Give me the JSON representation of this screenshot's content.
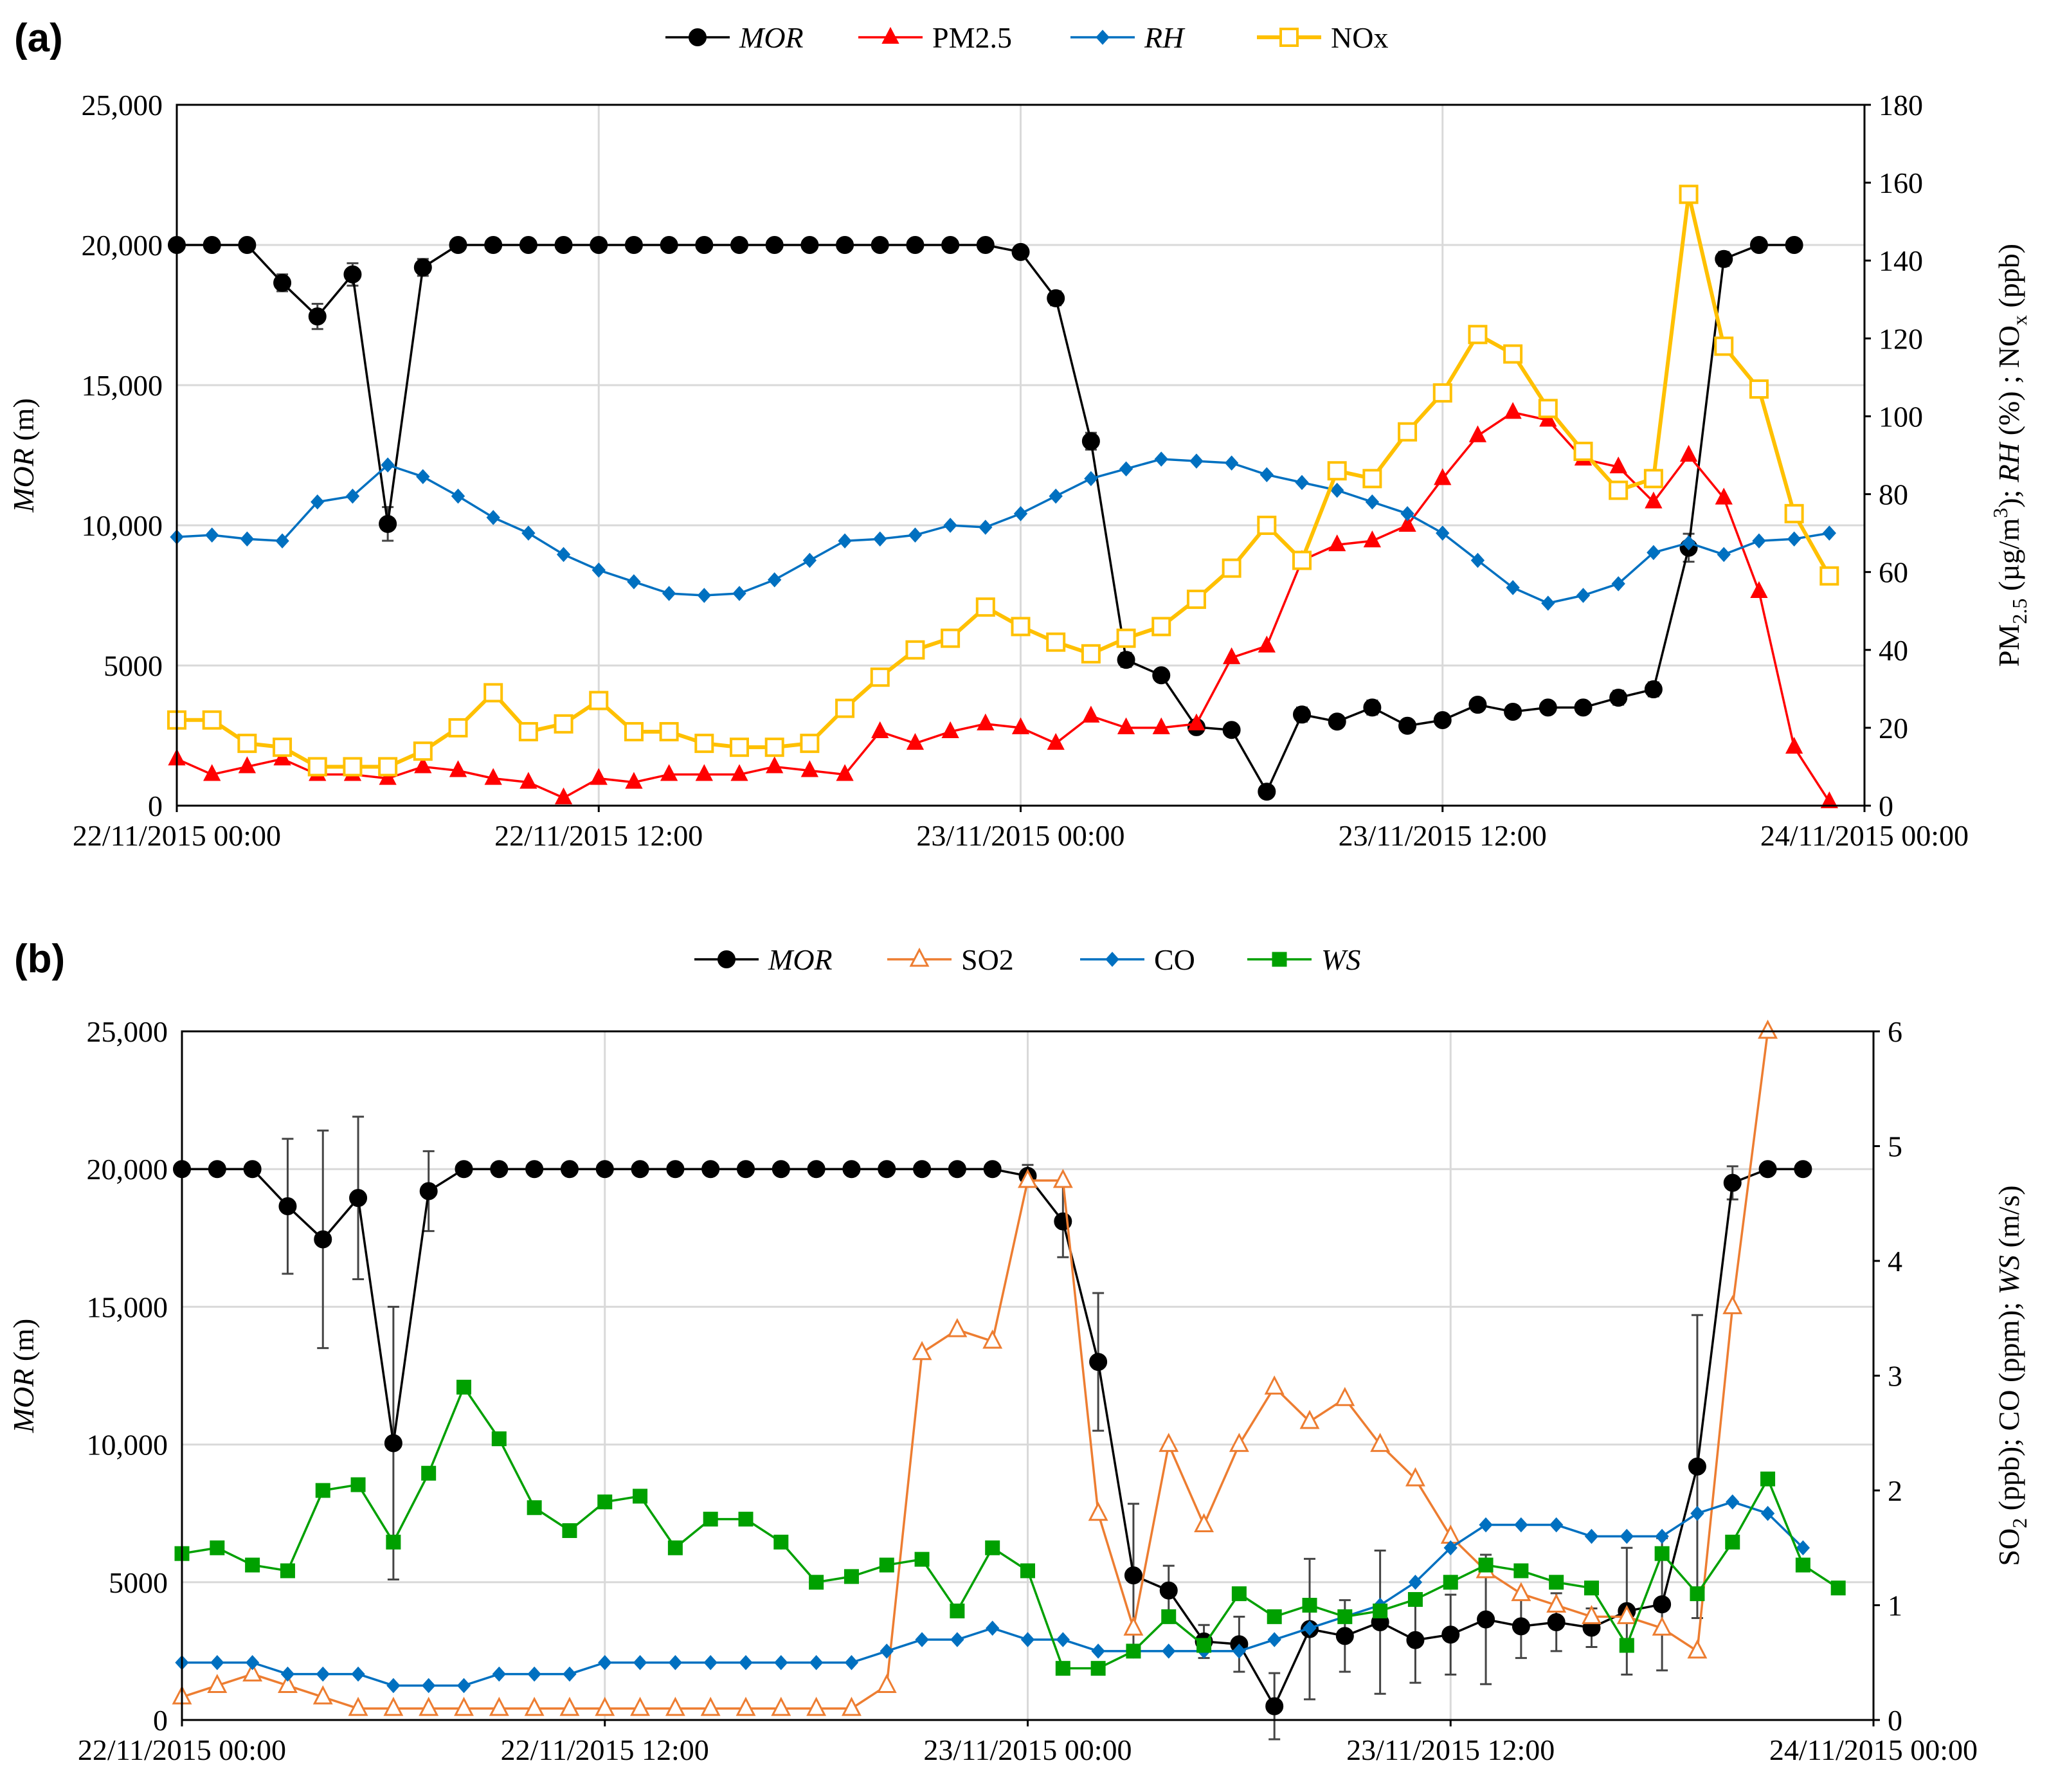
{
  "chart_data": [
    {
      "type": "line",
      "panel_label": "(a)",
      "x_labels": [
        "22/11/2015 00:00",
        "22/11/2015 12:00",
        "23/11/2015 00:00",
        "23/11/2015 12:00",
        "24/11/2015 00:00"
      ],
      "x_range_hours": [
        0,
        48
      ],
      "y_left": {
        "label_italic": "MOR",
        "label_rest": " (m)",
        "range": [
          0,
          25000
        ],
        "ticks": [
          "0",
          "5000",
          "10,000",
          "15,000",
          "20,000",
          "25,000"
        ]
      },
      "y_right": {
        "label": "PM2.5 (µg/m3); RH (%) ; NOx (ppb)",
        "range": [
          0,
          180
        ],
        "ticks": [
          "0",
          "20",
          "40",
          "60",
          "80",
          "100",
          "120",
          "140",
          "160",
          "180"
        ]
      },
      "series": [
        {
          "name": "MOR",
          "italic": true,
          "axis": "left",
          "color": "#000000",
          "marker": "circle-filled",
          "values": [
            20000,
            20000,
            20000,
            18650,
            17450,
            18950,
            10050,
            19200,
            20000,
            20000,
            20000,
            20000,
            20000,
            20000,
            20000,
            20000,
            20000,
            20000,
            20000,
            20000,
            20000,
            20000,
            20000,
            20000,
            19750,
            18100,
            13000,
            5200,
            4650,
            2800,
            2700,
            500,
            3250,
            3000,
            3500,
            2850,
            3050,
            3600,
            3350,
            3500,
            3500,
            3850,
            4150,
            9200,
            19500,
            20000,
            20000
          ],
          "errors": [
            0,
            0,
            0,
            300,
            450,
            400,
            600,
            300,
            0,
            0,
            0,
            0,
            0,
            0,
            0,
            0,
            0,
            0,
            0,
            0,
            0,
            0,
            0,
            0,
            150,
            250,
            300,
            250,
            200,
            200,
            150,
            150,
            250,
            200,
            250,
            200,
            200,
            200,
            200,
            200,
            200,
            250,
            250,
            500,
            250,
            0,
            0
          ]
        },
        {
          "name": "PM2.5",
          "italic": false,
          "axis": "right",
          "color": "#ff0000",
          "marker": "triangle-filled",
          "values": [
            12,
            8,
            10,
            12,
            8,
            8,
            7,
            10,
            9,
            7,
            6,
            2,
            7,
            6,
            8,
            8,
            8,
            10,
            9,
            8,
            19,
            16,
            19,
            21,
            20,
            16,
            23,
            20,
            20,
            21,
            38,
            41,
            63,
            67,
            68,
            72,
            84,
            95,
            101,
            99,
            89,
            87,
            78,
            90,
            79,
            55,
            15,
            1
          ]
        },
        {
          "name": "RH",
          "italic": true,
          "axis": "right",
          "color": "#0070c0",
          "marker": "diamond-filled",
          "values": [
            69,
            69.5,
            68.5,
            68,
            78,
            79.5,
            87.5,
            84.5,
            79.5,
            74,
            70,
            64.5,
            60.5,
            57.5,
            54.5,
            54,
            54.5,
            58,
            63,
            68,
            68.5,
            69.5,
            72,
            71.5,
            75,
            79.5,
            84,
            86.5,
            89,
            88.5,
            88,
            85,
            83,
            81,
            78,
            75,
            70,
            63,
            56,
            52,
            54,
            57,
            65,
            67.5,
            64.5,
            68,
            68.5,
            70
          ]
        },
        {
          "name": "NOx",
          "italic": false,
          "axis": "right",
          "color": "#ffc000",
          "marker": "square-open",
          "values": [
            22,
            22,
            16,
            15,
            10,
            10,
            10,
            14,
            20,
            29,
            19,
            21,
            27,
            19,
            19,
            16,
            15,
            15,
            16,
            25,
            33,
            40,
            43,
            51,
            46,
            42,
            39,
            43,
            46,
            53,
            61,
            72,
            63,
            86,
            84,
            96,
            106,
            121,
            116,
            102,
            91,
            81,
            84,
            157,
            118,
            107,
            75,
            59
          ]
        }
      ]
    },
    {
      "type": "line",
      "panel_label": "(b)",
      "x_labels": [
        "22/11/2015 00:00",
        "22/11/2015 12:00",
        "23/11/2015 00:00",
        "23/11/2015 12:00",
        "24/11/2015 00:00"
      ],
      "x_range_hours": [
        0,
        48
      ],
      "y_left": {
        "label_italic": "MOR",
        "label_rest": " (m)",
        "range": [
          0,
          25000
        ],
        "ticks": [
          "0",
          "5000",
          "10,000",
          "15,000",
          "20,000",
          "25,000"
        ]
      },
      "y_right": {
        "label": "SO2 (ppb); CO (ppm); WS (m/s)",
        "range": [
          0,
          6
        ],
        "ticks": [
          "0",
          "1",
          "2",
          "3",
          "4",
          "5",
          "6"
        ]
      },
      "series": [
        {
          "name": "MOR",
          "italic": true,
          "axis": "left",
          "color": "#000000",
          "marker": "circle-filled",
          "values": [
            20000,
            20000,
            20000,
            18650,
            17450,
            18950,
            10050,
            19200,
            20000,
            20000,
            20000,
            20000,
            20000,
            20000,
            20000,
            20000,
            20000,
            20000,
            20000,
            20000,
            20000,
            20000,
            20000,
            20000,
            19750,
            18100,
            13000,
            5250,
            4700,
            2850,
            2750,
            500,
            3300,
            3050,
            3550,
            2900,
            3100,
            3650,
            3400,
            3550,
            3350,
            3950,
            4200,
            9200,
            19500,
            20000,
            20000
          ],
          "errors": [
            0,
            0,
            0,
            2450,
            3950,
            2950,
            4950,
            1450,
            0,
            0,
            0,
            0,
            0,
            0,
            0,
            0,
            0,
            0,
            0,
            0,
            0,
            0,
            0,
            0,
            400,
            1300,
            2500,
            2600,
            900,
            600,
            1000,
            1200,
            2550,
            1300,
            2600,
            1550,
            1450,
            2350,
            1150,
            1050,
            700,
            2300,
            2400,
            5500,
            600,
            0,
            0
          ]
        },
        {
          "name": "SO2",
          "italic": false,
          "axis": "right",
          "color": "#ed7d31",
          "marker": "triangle-open",
          "values": [
            0.2,
            0.3,
            0.4,
            0.3,
            0.2,
            0.1,
            0.1,
            0.1,
            0.1,
            0.1,
            0.1,
            0.1,
            0.1,
            0.1,
            0.1,
            0.1,
            0.1,
            0.1,
            0.1,
            0.1,
            0.3,
            3.2,
            3.4,
            3.3,
            4.7,
            4.7,
            1.8,
            0.8,
            2.4,
            1.7,
            2.4,
            2.9,
            2.6,
            2.8,
            2.4,
            2.1,
            1.6,
            1.3,
            1.1,
            1.0,
            0.9,
            0.9,
            0.8,
            0.6,
            3.6,
            6.0
          ]
        },
        {
          "name": "CO",
          "italic": false,
          "axis": "right",
          "color": "#0070c0",
          "marker": "diamond-filled",
          "values": [
            0.5,
            0.5,
            0.5,
            0.4,
            0.4,
            0.4,
            0.3,
            0.3,
            0.3,
            0.4,
            0.4,
            0.4,
            0.5,
            0.5,
            0.5,
            0.5,
            0.5,
            0.5,
            0.5,
            0.5,
            0.6,
            0.7,
            0.7,
            0.8,
            0.7,
            0.7,
            0.6,
            0.6,
            0.6,
            0.6,
            0.6,
            0.7,
            0.8,
            0.9,
            1.0,
            1.2,
            1.5,
            1.7,
            1.7,
            1.7,
            1.6,
            1.6,
            1.6,
            1.8,
            1.9,
            1.8,
            1.5
          ]
        },
        {
          "name": "WS",
          "italic": true,
          "axis": "right",
          "color": "#00a000",
          "marker": "square-filled",
          "values": [
            1.45,
            1.5,
            1.35,
            1.3,
            2.0,
            2.05,
            1.55,
            2.15,
            2.9,
            2.45,
            1.85,
            1.65,
            1.9,
            1.95,
            1.5,
            1.75,
            1.75,
            1.55,
            1.2,
            1.25,
            1.35,
            1.4,
            0.95,
            1.5,
            1.3,
            0.45,
            0.45,
            0.6,
            0.9,
            0.65,
            1.1,
            0.9,
            1.0,
            0.9,
            0.95,
            1.05,
            1.2,
            1.35,
            1.3,
            1.2,
            1.15,
            0.65,
            1.45,
            1.1,
            1.55,
            2.1,
            1.35,
            1.15
          ]
        }
      ]
    }
  ]
}
